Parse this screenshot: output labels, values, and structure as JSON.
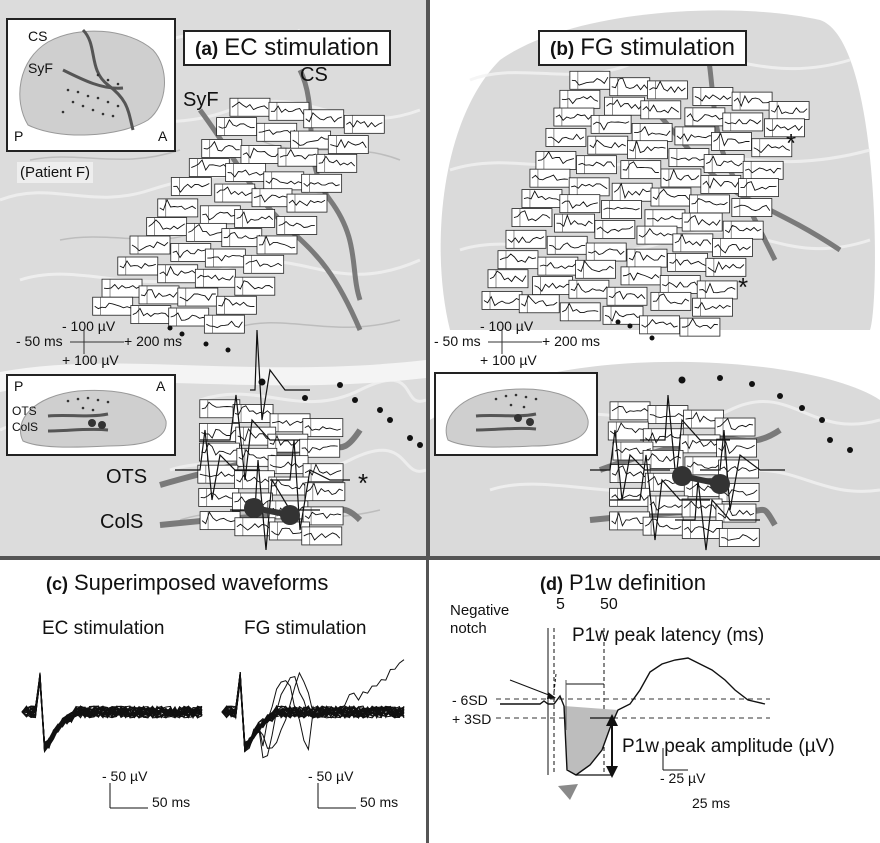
{
  "panel_a": {
    "letter": "(a)",
    "title": "EC stimulation",
    "sulci_upper": [
      "CS",
      "SyF"
    ],
    "patient": "(Patient F)",
    "inset_upper_labels": [
      "CS",
      "SyF",
      "P",
      "A"
    ],
    "inset_lower_labels": [
      "P",
      "A",
      "OTS",
      "ColS"
    ],
    "sulci_lower": [
      "OTS",
      "ColS"
    ],
    "scale": {
      "top": "- 100 µV",
      "left": "- 50 ms",
      "right": "+ 200 ms",
      "bottom": "+ 100 µV"
    }
  },
  "panel_b": {
    "letter": "(b)",
    "title": "FG stimulation",
    "scale": {
      "top": "- 100 µV",
      "left": "- 50 ms",
      "right": "+ 200 ms",
      "bottom": "+ 100 µV"
    }
  },
  "panel_c": {
    "letter": "(c)",
    "title": "Superimposed waveforms",
    "left_label": "EC stimulation",
    "right_label": "FG stimulation",
    "scale_v": "- 50 µV",
    "scale_t": "50 ms"
  },
  "panel_d": {
    "letter": "(d)",
    "title": "P1w definition",
    "tick_5": "5",
    "tick_50": "50",
    "negative_notch": [
      "Negative",
      "notch"
    ],
    "minus_6sd": "- 6SD",
    "plus_3sd": "+ 3SD",
    "peak_latency": "P1w peak latency (ms)",
    "peak_amplitude": "P1w peak amplitude (µV)",
    "scale_v": "- 25 µV",
    "scale_t": "25 ms"
  },
  "colors": {
    "brain": "#d8d8d8",
    "sulcus": "#777777",
    "electrode": "#111111",
    "divider": "#555555"
  }
}
